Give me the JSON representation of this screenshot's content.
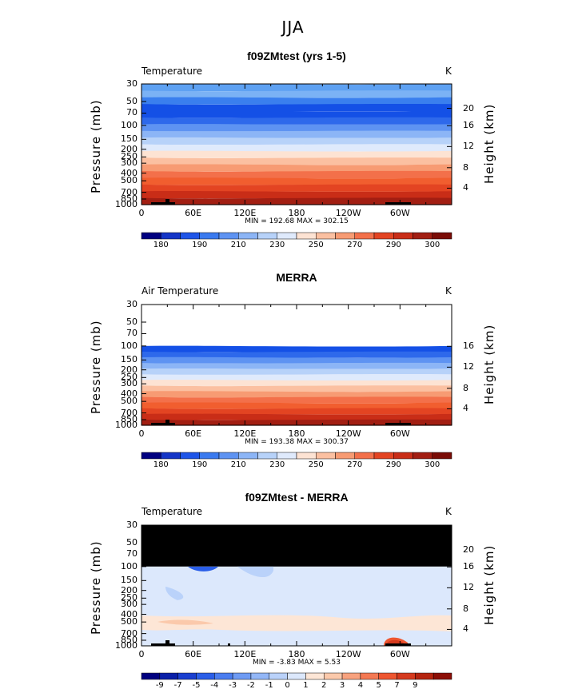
{
  "supertitle": "JJA",
  "chart_data": [
    {
      "type": "heatmap",
      "title": "f09ZMtest (yrs 1-5)",
      "left_label": "Temperature",
      "units": "K",
      "ylabel": "Pressure (mb)",
      "ylabel_right": "Height (km)",
      "y_ticks": [
        "30",
        "50",
        "70",
        "100",
        "150",
        "200",
        "250",
        "300",
        "400",
        "500",
        "700",
        "850",
        "1000"
      ],
      "height_ticks": [
        "20",
        "16",
        "12",
        "8",
        "4"
      ],
      "x_ticks": [
        "0",
        "60E",
        "120E",
        "180",
        "120W",
        "60W"
      ],
      "stats": "MIN = 192.68  MAX = 302.15",
      "colorbar_labels": [
        "180",
        "190",
        "210",
        "230",
        "250",
        "270",
        "290",
        "300"
      ],
      "level_colors": [
        "#5EA1F2",
        "#7BB2F5",
        "#3A7FEE",
        "#1450E6",
        "#1450E6",
        "#2E69EB",
        "#5E93F2",
        "#8CB5F6",
        "#B7D2F9",
        "#DFEAFC",
        "#FDE3D3",
        "#FBC0A1",
        "#F79B73",
        "#F3704A",
        "#F15E2F",
        "#E34422",
        "#C92D17",
        "#A21E12"
      ]
    },
    {
      "type": "heatmap",
      "title": "MERRA",
      "left_label": "Air Temperature",
      "units": "K",
      "ylabel": "Pressure (mb)",
      "ylabel_right": "Height (km)",
      "y_ticks": [
        "30",
        "50",
        "70",
        "100",
        "150",
        "200",
        "250",
        "300",
        "400",
        "500",
        "700",
        "850",
        "1000"
      ],
      "height_ticks": [
        "16",
        "12",
        "8",
        "4"
      ],
      "x_ticks": [
        "0",
        "60E",
        "120E",
        "180",
        "120W",
        "60W"
      ],
      "stats": "MIN = 193.38  MAX = 300.37",
      "colorbar_labels": [
        "180",
        "190",
        "210",
        "230",
        "250",
        "270",
        "290",
        "300"
      ],
      "level_colors": [
        "#1450E6",
        "#2E69EB",
        "#5E93F2",
        "#8CB5F6",
        "#B7D2F9",
        "#DFEAFC",
        "#FDE3D3",
        "#FBC0A1",
        "#F79B73",
        "#F3704A",
        "#F15E2F",
        "#E34422",
        "#C92D17",
        "#A21E12"
      ]
    },
    {
      "type": "heatmap",
      "title": "f09ZMtest - MERRA",
      "left_label": "Temperature",
      "units": "K",
      "ylabel": "Pressure (mb)",
      "ylabel_right": "Height (km)",
      "y_ticks": [
        "30",
        "50",
        "70",
        "100",
        "150",
        "200",
        "250",
        "300",
        "400",
        "500",
        "700",
        "850",
        "1000"
      ],
      "height_ticks": [
        "20",
        "16",
        "12",
        "8",
        "4"
      ],
      "x_ticks": [
        "0",
        "60E",
        "120E",
        "180",
        "120W",
        "60W"
      ],
      "stats": "MIN =   -3.83  MAX =    5.53",
      "colorbar_labels": [
        "-9",
        "-7",
        "-5",
        "-4",
        "-3",
        "-2",
        "-1",
        "0",
        "1",
        "2",
        "3",
        "4",
        "5",
        "7",
        "9"
      ],
      "colorbar_colors": [
        "#000080",
        "#0A1FA8",
        "#1A3FD0",
        "#2A5EE8",
        "#4A7DF0",
        "#6E9BF4",
        "#93B7F7",
        "#BAD2FA",
        "#DCE8FC",
        "#FDE6D6",
        "#FBC9AB",
        "#F8A27E",
        "#F47953",
        "#EE5630",
        "#D53A1E",
        "#B5240F",
        "#8C0E06"
      ]
    }
  ]
}
